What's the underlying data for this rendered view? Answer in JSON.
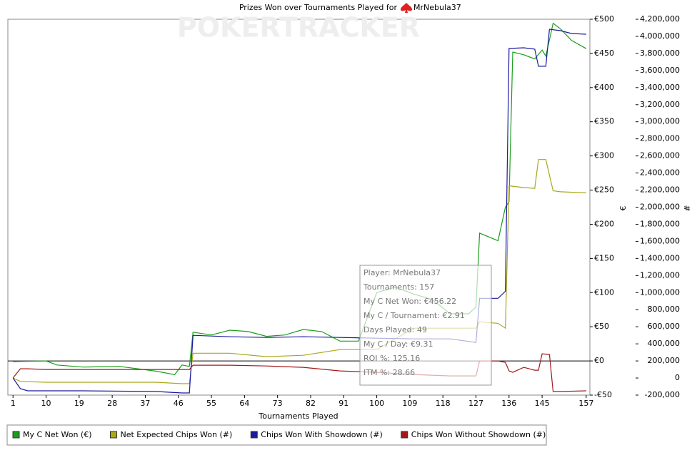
{
  "chart_data": {
    "type": "line",
    "title": "Prizes Won over Tournaments Played for",
    "player": "MrNebula37",
    "watermark": "POKERTRACKER",
    "xlabel": "Tournaments Played",
    "ylabel": "€",
    "y2label": "#",
    "xlim": [
      -0.4,
      158
    ],
    "xticks": [
      1,
      10,
      19,
      28,
      37,
      46,
      55,
      64,
      73,
      82,
      91,
      100,
      109,
      118,
      127,
      136,
      145,
      157
    ],
    "ylim": [
      -50,
      500
    ],
    "yticks": [
      {
        "value": 500,
        "label": "€500"
      },
      {
        "value": 450,
        "label": "€450"
      },
      {
        "value": 400,
        "label": "€400"
      },
      {
        "value": 350,
        "label": "€350"
      },
      {
        "value": 300,
        "label": "€300"
      },
      {
        "value": 250,
        "label": "€250"
      },
      {
        "value": 200,
        "label": "€200"
      },
      {
        "value": 150,
        "label": "€150"
      },
      {
        "value": 100,
        "label": "€100"
      },
      {
        "value": 50,
        "label": "€50"
      },
      {
        "value": 0,
        "label": "€0"
      },
      {
        "value": -50,
        "label": "-€50"
      }
    ],
    "y2lim": [
      -200000,
      4200000
    ],
    "y2ticks": [
      {
        "value": 4200000,
        "label": "4,200,000"
      },
      {
        "value": 4000000,
        "label": "4,000,000"
      },
      {
        "value": 3800000,
        "label": "3,800,000"
      },
      {
        "value": 3600000,
        "label": "3,600,000"
      },
      {
        "value": 3400000,
        "label": "3,400,000"
      },
      {
        "value": 3200000,
        "label": "3,200,000"
      },
      {
        "value": 3000000,
        "label": "3,000,000"
      },
      {
        "value": 2800000,
        "label": "2,800,000"
      },
      {
        "value": 2600000,
        "label": "2,600,000"
      },
      {
        "value": 2400000,
        "label": "2,400,000"
      },
      {
        "value": 2200000,
        "label": "2,200,000"
      },
      {
        "value": 2000000,
        "label": "2,000,000"
      },
      {
        "value": 1800000,
        "label": "1,800,000"
      },
      {
        "value": 1600000,
        "label": "1,600,000"
      },
      {
        "value": 1400000,
        "label": "1,400,000"
      },
      {
        "value": 1200000,
        "label": "1,200,000"
      },
      {
        "value": 1000000,
        "label": "1,000,000"
      },
      {
        "value": 800000,
        "label": "800,000"
      },
      {
        "value": 600000,
        "label": "600,000"
      },
      {
        "value": 400000,
        "label": "400,000"
      },
      {
        "value": 200000,
        "label": "200,000"
      },
      0,
      {
        "value": -200000,
        "label": "-200,000"
      }
    ],
    "series": [
      {
        "name": "My C Net Won (€)",
        "color": "#1a9e1a",
        "axis": "y",
        "x": [
          1,
          10,
          13,
          20,
          30,
          40,
          45,
          47,
          49,
          50,
          55,
          60,
          65,
          70,
          75,
          80,
          85,
          90,
          95,
          100,
          105,
          110,
          115,
          120,
          125,
          127,
          128,
          133,
          135,
          136,
          137,
          140,
          143,
          145,
          146,
          148,
          150,
          153,
          157
        ],
        "values": [
          -1,
          0,
          -6,
          -9,
          -8,
          -15,
          -20,
          -6,
          -8,
          42,
          38,
          45,
          43,
          36,
          38,
          46,
          43,
          29,
          29,
          100,
          108,
          98,
          90,
          69,
          69,
          79,
          187,
          176,
          225,
          233,
          452,
          448,
          442,
          455,
          446,
          494,
          486,
          469,
          457
        ]
      },
      {
        "name": "Net Expected Chips Won (#)",
        "color": "#a8a81a",
        "axis": "y2",
        "x": [
          1,
          3,
          10,
          20,
          40,
          47,
          49,
          50,
          60,
          70,
          80,
          90,
          100,
          110,
          120,
          127,
          128,
          133,
          135,
          136,
          140,
          143,
          144,
          146,
          148,
          150,
          157
        ],
        "values": [
          0,
          -40000,
          -50000,
          -50000,
          -50000,
          -66000,
          -66000,
          290000,
          290000,
          250000,
          266000,
          333000,
          333000,
          583000,
          583000,
          583000,
          658000,
          640000,
          583000,
          2250000,
          2230000,
          2220000,
          2558000,
          2558000,
          2192000,
          2180000,
          2167000
        ]
      },
      {
        "name": "Chips Won With Showdown (#)",
        "color": "#1a1a9e",
        "axis": "y2",
        "x": [
          1,
          3,
          5,
          20,
          40,
          47,
          49,
          50,
          60,
          70,
          80,
          90,
          100,
          110,
          120,
          127,
          128,
          133,
          135,
          136,
          140,
          143,
          144,
          146,
          147,
          150,
          153,
          157
        ],
        "values": [
          0,
          -125000,
          -150000,
          -150000,
          -158000,
          -175000,
          -175000,
          500000,
          483000,
          475000,
          483000,
          475000,
          466000,
          458000,
          458000,
          416000,
          933000,
          933000,
          1016000,
          3858000,
          3866000,
          3850000,
          3650000,
          3650000,
          4083000,
          4066000,
          4033000,
          4025000
        ]
      },
      {
        "name": "Chips Won Without Showdown (#)",
        "color": "#a01a1a",
        "axis": "y2",
        "x": [
          1,
          3,
          5,
          10,
          20,
          40,
          47,
          49,
          50,
          60,
          70,
          80,
          90,
          100,
          110,
          120,
          127,
          128,
          133,
          135,
          136,
          137,
          140,
          143,
          144,
          145,
          147,
          148,
          150,
          157
        ],
        "values": [
          0,
          108000,
          108000,
          100000,
          100000,
          100000,
          100000,
          100000,
          150000,
          150000,
          141000,
          125000,
          83000,
          66000,
          41000,
          25000,
          25000,
          200000,
          200000,
          183000,
          83000,
          66000,
          125000,
          91000,
          91000,
          283000,
          275000,
          -158000,
          -158000,
          -150000
        ]
      }
    ],
    "tooltip": [
      "Player: MrNebula37",
      "Tournaments: 157",
      "My C Net Won: €456.22",
      "My C / Tournament: €2.91",
      "Days Played: 49",
      "My C / Day: €9.31",
      "ROI %: 125.16",
      "ITM %: 28.66"
    ]
  }
}
